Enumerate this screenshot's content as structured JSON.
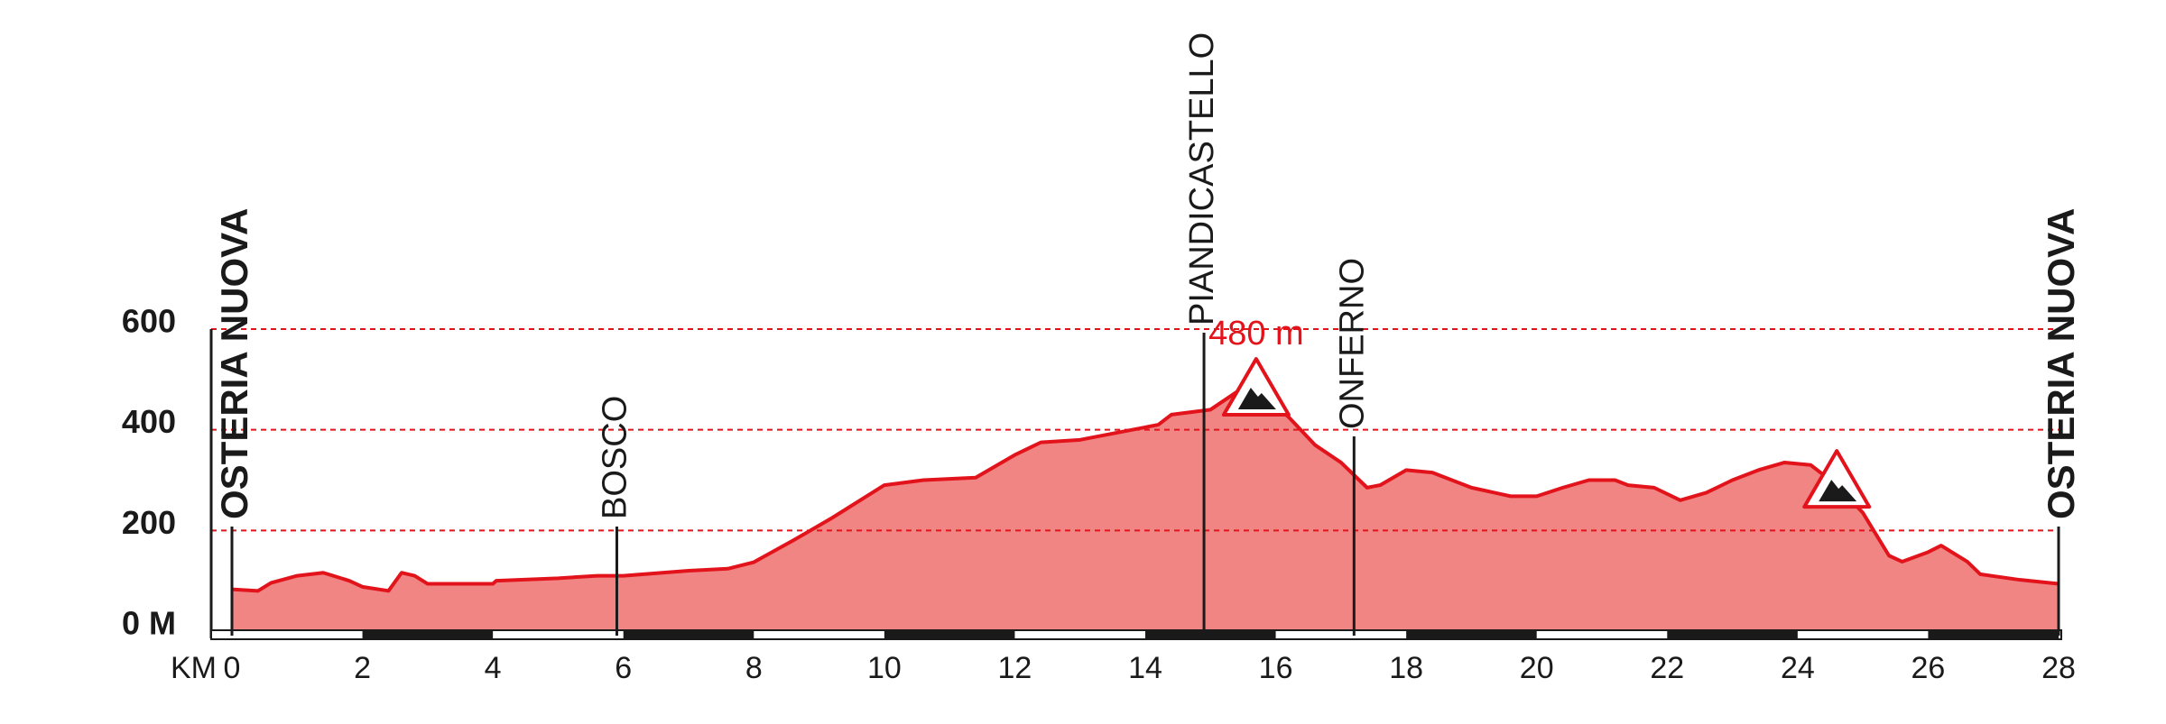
{
  "chart_data": {
    "type": "area",
    "x_label": "KM",
    "x": [
      0,
      0.4,
      0.6,
      1.0,
      1.4,
      1.8,
      2.0,
      2.4,
      2.6,
      2.8,
      3.0,
      4.0,
      4.05,
      5.0,
      5.6,
      6.0,
      7.0,
      7.6,
      8.0,
      8.6,
      9.2,
      10.0,
      10.6,
      11.4,
      11.6,
      12.0,
      12.4,
      13.0,
      13.8,
      14.2,
      14.4,
      15.0,
      15.4,
      15.8,
      16.2,
      16.6,
      17.0,
      17.4,
      17.6,
      18.0,
      18.4,
      19.0,
      19.6,
      20.0,
      20.4,
      20.8,
      21.2,
      21.4,
      21.8,
      22.2,
      22.6,
      23.0,
      23.4,
      23.8,
      24.2,
      24.6,
      25.0,
      25.4,
      25.6,
      26.0,
      26.2,
      26.6,
      26.8,
      27.4,
      28.0
    ],
    "values": [
      83,
      80,
      96,
      110,
      116,
      100,
      88,
      80,
      116,
      110,
      94,
      94,
      100,
      105,
      110,
      110,
      120,
      124,
      137,
      180,
      225,
      290,
      300,
      305,
      320,
      350,
      375,
      380,
      400,
      410,
      430,
      440,
      475,
      472,
      425,
      370,
      335,
      285,
      290,
      320,
      315,
      285,
      268,
      268,
      285,
      300,
      300,
      290,
      285,
      260,
      275,
      300,
      320,
      335,
      330,
      290,
      235,
      150,
      138,
      157,
      170,
      138,
      113,
      102,
      94
    ],
    "color": "#e3131b",
    "fill": "#f08584",
    "xlim": [
      0,
      28
    ],
    "xticks": [
      0,
      2,
      4,
      6,
      8,
      10,
      12,
      14,
      16,
      18,
      20,
      22,
      24,
      26,
      28
    ],
    "ylim": [
      0,
      600
    ],
    "yticks": [
      {
        "value": 0,
        "label": "0 M"
      },
      200,
      400,
      600
    ],
    "grid": true,
    "places": [
      {
        "name": "OSTERIA NUOVA",
        "x": 0
      },
      {
        "name": "BOSCO",
        "x": 5.9
      },
      {
        "name": "PIANDICASTELLO",
        "x": 14.9
      },
      {
        "name": "ONFERNO",
        "x": 17.2
      },
      {
        "name": "OSTERIA NUOVA",
        "x": 28
      }
    ],
    "climbs": [
      {
        "x": 15.7,
        "label": "480 m"
      },
      {
        "x": 24.6
      }
    ]
  }
}
